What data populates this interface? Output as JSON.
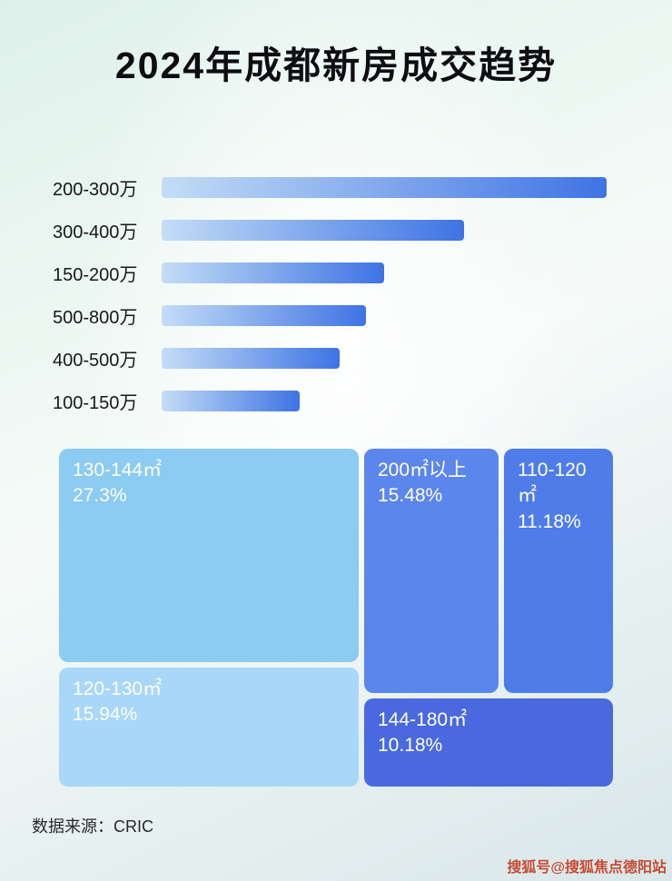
{
  "title": "2024年成都新房成交趋势",
  "footer": {
    "source_label": "数据来源：CRIC"
  },
  "watermark": {
    "text": "搜狐号@搜狐焦点德阳站",
    "color": "#c44a32"
  },
  "chart_data": [
    {
      "type": "bar",
      "orientation": "horizontal",
      "title": "2024年成都新房成交趋势",
      "categories": [
        "200-300万",
        "300-400万",
        "150-200万",
        "500-800万",
        "400-500万",
        "100-150万"
      ],
      "values": [
        100,
        68,
        50,
        46,
        40,
        31
      ],
      "values_note": "bars carry no numeric labels in the image; values estimated as percent of the longest bar",
      "xlim": [
        0,
        100
      ],
      "grid": false,
      "legend": false,
      "bar_gradient": [
        "#c3ddf6",
        "#3e73e4"
      ]
    },
    {
      "type": "treemap",
      "title": "",
      "items": [
        {
          "label": "130-144㎡",
          "display": "27.3%",
          "value": 27.3,
          "color": "#8ccbf2"
        },
        {
          "label": "200㎡以上",
          "display": "15.48%",
          "value": 15.48,
          "color": "#5b86ec"
        },
        {
          "label": "110-120㎡",
          "display": "11.18%",
          "value": 11.18,
          "color": "#4e7ce8"
        },
        {
          "label": "120-130㎡",
          "display": "15.94%",
          "value": 15.94,
          "color": "#a9d7f7"
        },
        {
          "label": "144-180㎡",
          "display": "10.18%",
          "value": 10.18,
          "color": "#4a69de"
        }
      ]
    }
  ]
}
